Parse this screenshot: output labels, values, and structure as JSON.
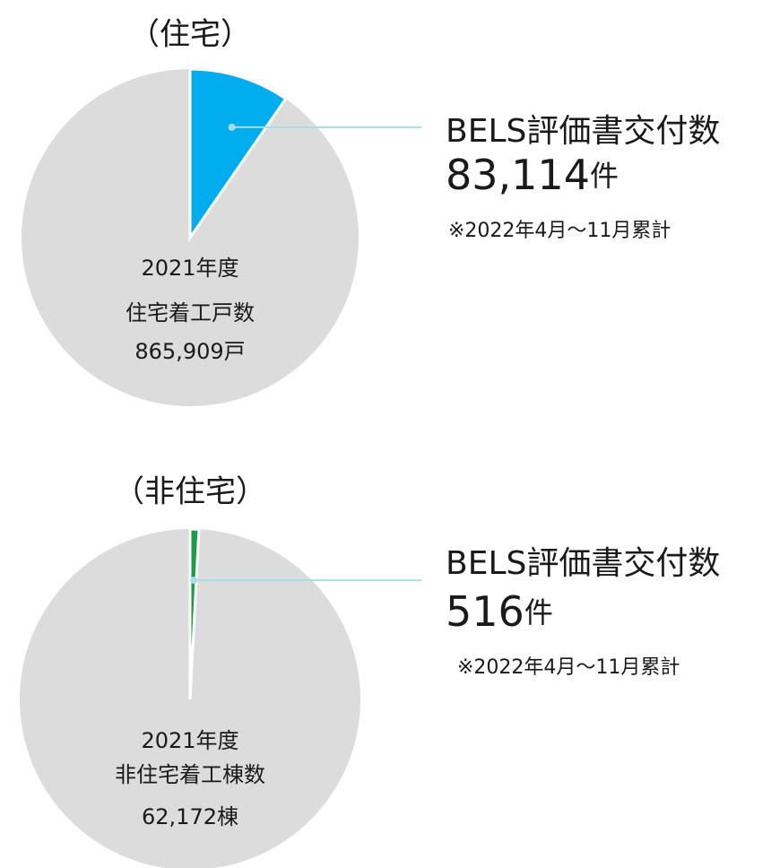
{
  "chart_data": [
    {
      "type": "pie",
      "title": "（住宅）",
      "slice": {
        "name": "BELS評価書交付数",
        "value": 83114,
        "value_label": "83,114",
        "unit": "件",
        "note": "※2022年4月〜11月累計",
        "color": "#00aeef"
      },
      "total": {
        "name": [
          "2021年度",
          "住宅着工戸数"
        ],
        "value": 865909,
        "value_label": "865,909戸",
        "color": "#dcdcdc"
      }
    },
    {
      "type": "pie",
      "title": "（非住宅）",
      "slice": {
        "name": "BELS評価書交付数",
        "value": 516,
        "value_label": "516",
        "unit": "件",
        "note": "※2022年4月〜11月累計",
        "color": "#1a9e4a"
      },
      "total": {
        "name": [
          "2021年度",
          "非住宅着工棟数"
        ],
        "value": 62172,
        "value_label": "62,172棟",
        "color": "#dcdcdc"
      }
    }
  ]
}
